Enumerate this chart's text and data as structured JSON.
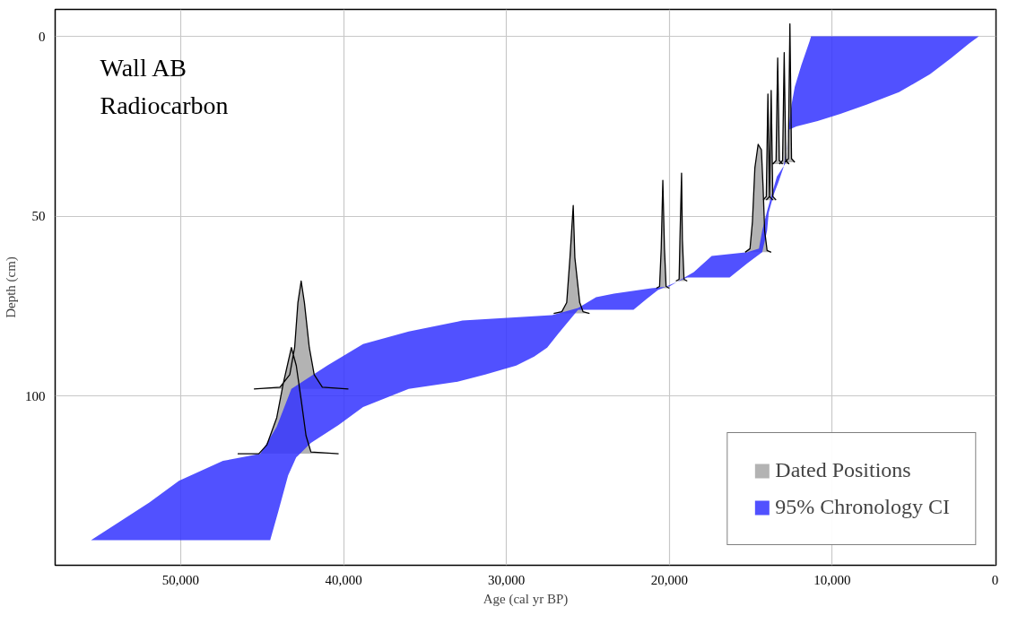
{
  "chart_data": {
    "type": "area",
    "xlabel": "Age (cal yr BP)",
    "ylabel": "Depth (cm)",
    "annotations": [
      "Wall AB",
      "Radiocarbon"
    ],
    "xlim": [
      57700,
      -50
    ],
    "ylim": [
      147,
      -7.5
    ],
    "xticks": [
      {
        "value": 50000,
        "label": "50,000"
      },
      {
        "value": 40000,
        "label": "40,000"
      },
      {
        "value": 30000,
        "label": "30,000"
      },
      {
        "value": 20000,
        "label": "20,000"
      },
      {
        "value": 10000,
        "label": "10,000"
      },
      0
    ],
    "yticks": [
      0,
      50,
      100
    ],
    "grid": true,
    "legend": "bottom right",
    "series": [
      {
        "name": "Dated Positions",
        "color": "#b3b3b3",
        "line_style": "solid",
        "x": [
          45500,
          43900,
          43300,
          43000,
          42800,
          42600,
          42400,
          42100,
          41800,
          41300,
          39700,
          null,
          46500,
          45200,
          44700,
          44100,
          43700,
          43200,
          42900,
          42600,
          42300,
          42000,
          40300,
          null,
          27100,
          26600,
          26300,
          26100,
          25900,
          25800,
          25500,
          25300,
          24900,
          null,
          20800,
          20600,
          20500,
          20400,
          20300,
          20200,
          20000,
          null,
          19600,
          19400,
          19350,
          19250,
          19200,
          19100,
          18900,
          null,
          15350,
          15050,
          14900,
          14750,
          14550,
          14350,
          14250,
          14150,
          14000,
          13750,
          null,
          14250,
          14050,
          14000,
          13950,
          13900,
          13850,
          13650,
          null,
          14050,
          13850,
          13800,
          13750,
          13700,
          13650,
          13450,
          null,
          13650,
          13450,
          13400,
          13350,
          13300,
          13250,
          13050,
          null,
          13250,
          13050,
          13000,
          12950,
          12900,
          12850,
          12650,
          null,
          12900,
          12700,
          12650,
          12600,
          12550,
          12500,
          12300
        ],
        "values": [
          98,
          97.5,
          94,
          86.5,
          74,
          68,
          74,
          86.5,
          94,
          97.5,
          98,
          null,
          116,
          116,
          113.5,
          106,
          96.5,
          86.5,
          91.5,
          101,
          111,
          115.5,
          116,
          null,
          77,
          76.5,
          74,
          61.5,
          47,
          61.5,
          74,
          76.5,
          77,
          null,
          70,
          69.5,
          59,
          40,
          59,
          69.5,
          70,
          null,
          68,
          67.5,
          56.5,
          38,
          56.5,
          67.5,
          68,
          null,
          60,
          59,
          51.5,
          36.5,
          30,
          31.5,
          41.5,
          54,
          59.5,
          60,
          null,
          45.5,
          44.5,
          30,
          16,
          30,
          44.5,
          45.5,
          null,
          45.5,
          44.5,
          30,
          15,
          30,
          44.5,
          45.5,
          null,
          35.5,
          34.5,
          20,
          6,
          20,
          34.5,
          35.5,
          null,
          35.5,
          34.5,
          20,
          4.5,
          20,
          34.5,
          35.5,
          null,
          35,
          34,
          15,
          -3.5,
          15,
          34,
          35
        ]
      },
      {
        "name": "95% Chronology CI",
        "color": "#3333ff",
        "x": [
          55500,
          53600,
          51900,
          50100,
          47400,
          45100,
          44100,
          43200,
          41000,
          38800,
          36000,
          32700,
          27200,
          25600,
          24500,
          23400,
          21100,
          20000,
          18500,
          17400,
          15200,
          14500,
          14300,
          14000,
          13400,
          12900,
          12700,
          12500,
          12300,
          11900,
          11400,
          11300,
          1000,
          1600,
          2700,
          4000,
          5900,
          7900,
          9500,
          10900,
          12200,
          12700,
          12800,
          13000,
          13300,
          13600,
          13900,
          14000,
          14300,
          15200,
          16300,
          18900,
          20700,
          21400,
          22200,
          25600,
          26800,
          27500,
          28300,
          29400,
          31300,
          33000,
          36000,
          38800,
          40300,
          42000,
          42900,
          43400,
          44000,
          44500
        ],
        "values": [
          140,
          134.5,
          129.5,
          123.5,
          118,
          116,
          108.5,
          98,
          91.5,
          85.5,
          82,
          79,
          77.5,
          75.5,
          72.5,
          71.5,
          70,
          69.5,
          65.5,
          61,
          60,
          59,
          54,
          48.5,
          39,
          35.5,
          26.5,
          19,
          14,
          8,
          1.5,
          0,
          0,
          2,
          6,
          10.5,
          15.5,
          19,
          21.5,
          23.5,
          25,
          26,
          31.5,
          36.5,
          40.5,
          44,
          49,
          54,
          60,
          63,
          67,
          67,
          70.5,
          73,
          76,
          76,
          82.5,
          86.5,
          89,
          91.5,
          94,
          96,
          98,
          103,
          108,
          113,
          117,
          122,
          132,
          140
        ]
      }
    ]
  }
}
